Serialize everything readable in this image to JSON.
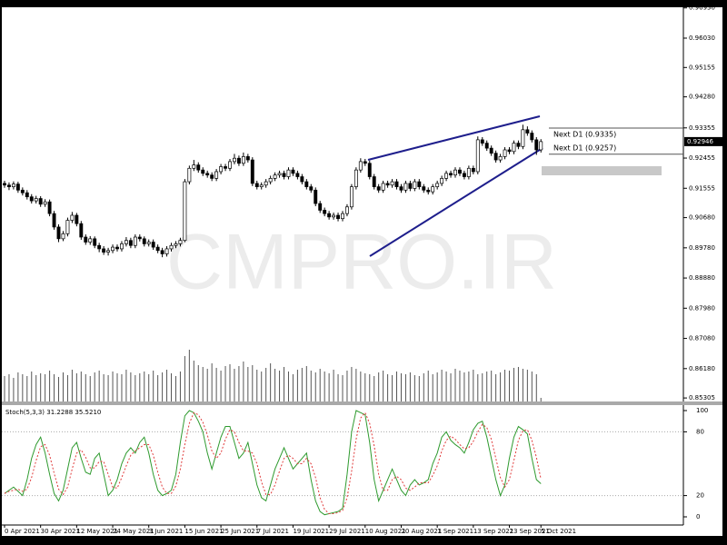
{
  "chart_data": {
    "type": "candlestick",
    "watermark": "CMPRO.IR",
    "categories": [
      "0 Apr 2021",
      null,
      null,
      null,
      null,
      null,
      null,
      null,
      "30 Apr 2021",
      null,
      null,
      null,
      null,
      null,
      null,
      null,
      "12 May 2021",
      null,
      null,
      null,
      null,
      null,
      null,
      null,
      "24 May 2021",
      null,
      null,
      null,
      null,
      null,
      null,
      null,
      "3 Jun 2021",
      null,
      null,
      null,
      null,
      null,
      null,
      null,
      "15 Jun 2021",
      null,
      null,
      null,
      null,
      null,
      null,
      null,
      "25 Jun 2021",
      null,
      null,
      null,
      null,
      null,
      null,
      null,
      "7 Jul 2021",
      null,
      null,
      null,
      null,
      null,
      null,
      null,
      "19 Jul 2021",
      null,
      null,
      null,
      null,
      null,
      null,
      null,
      "29 Jul 2021",
      null,
      null,
      null,
      null,
      null,
      null,
      null,
      "10 Aug 2021",
      null,
      null,
      null,
      null,
      null,
      null,
      null,
      "20 Aug 2021",
      null,
      null,
      null,
      null,
      null,
      null,
      null,
      "1 Sep 2021",
      null,
      null,
      null,
      null,
      null,
      null,
      null,
      "13 Sep 2021",
      null,
      null,
      null,
      null,
      null,
      null,
      null,
      "23 Sep 2021",
      null,
      null,
      null,
      null,
      null,
      null,
      "5 Oct 2021"
    ],
    "candles": [
      [
        0.917,
        0.9178,
        0.9157,
        0.9165
      ],
      [
        0.9165,
        0.9173,
        0.915,
        0.916
      ],
      [
        0.916,
        0.9176,
        0.9152,
        0.9168
      ],
      [
        0.9168,
        0.9175,
        0.9142,
        0.915
      ],
      [
        0.915,
        0.9158,
        0.9134,
        0.9142
      ],
      [
        0.9142,
        0.915,
        0.9122,
        0.913
      ],
      [
        0.913,
        0.9138,
        0.911,
        0.9118
      ],
      [
        0.9118,
        0.9133,
        0.911,
        0.9125
      ],
      [
        0.9125,
        0.9132,
        0.91,
        0.9108
      ],
      [
        0.9108,
        0.9123,
        0.91,
        0.9115
      ],
      [
        0.9115,
        0.9122,
        0.9072,
        0.908
      ],
      [
        0.908,
        0.9088,
        0.9032,
        0.904
      ],
      [
        0.904,
        0.9048,
        0.8995,
        0.9005
      ],
      [
        0.9005,
        0.9028,
        0.8998,
        0.902
      ],
      [
        0.902,
        0.9068,
        0.9012,
        0.906
      ],
      [
        0.906,
        0.9085,
        0.9052,
        0.9075
      ],
      [
        0.9075,
        0.9082,
        0.9042,
        0.905
      ],
      [
        0.905,
        0.9058,
        0.9002,
        0.901
      ],
      [
        0.901,
        0.9018,
        0.8987,
        0.8995
      ],
      [
        0.8995,
        0.9013,
        0.8987,
        0.9005
      ],
      [
        0.9005,
        0.9012,
        0.8977,
        0.8985
      ],
      [
        0.8985,
        0.8993,
        0.8965,
        0.8975
      ],
      [
        0.8975,
        0.8983,
        0.8957,
        0.8965
      ],
      [
        0.8965,
        0.8978,
        0.8955,
        0.897
      ],
      [
        0.897,
        0.8988,
        0.8962,
        0.898
      ],
      [
        0.898,
        0.8988,
        0.8967,
        0.8975
      ],
      [
        0.8975,
        0.8998,
        0.8967,
        0.899
      ],
      [
        0.899,
        0.901,
        0.8982,
        0.9
      ],
      [
        0.9,
        0.9008,
        0.8977,
        0.8985
      ],
      [
        0.8985,
        0.9018,
        0.8977,
        0.901
      ],
      [
        0.901,
        0.9018,
        0.8997,
        0.9005
      ],
      [
        0.9005,
        0.9012,
        0.8982,
        0.899
      ],
      [
        0.899,
        0.9003,
        0.8982,
        0.8995
      ],
      [
        0.8995,
        0.9003,
        0.8972,
        0.898
      ],
      [
        0.898,
        0.8988,
        0.8962,
        0.897
      ],
      [
        0.897,
        0.8978,
        0.895,
        0.896
      ],
      [
        0.896,
        0.8983,
        0.8952,
        0.8975
      ],
      [
        0.8975,
        0.8993,
        0.8967,
        0.8985
      ],
      [
        0.8985,
        0.8998,
        0.8977,
        0.899
      ],
      [
        0.899,
        0.9008,
        0.8982,
        0.9
      ],
      [
        0.9,
        0.9183,
        0.8995,
        0.9175
      ],
      [
        0.9175,
        0.9223,
        0.9167,
        0.9215
      ],
      [
        0.9215,
        0.924,
        0.9207,
        0.9225
      ],
      [
        0.9225,
        0.9233,
        0.9202,
        0.921
      ],
      [
        0.921,
        0.9218,
        0.9192,
        0.92
      ],
      [
        0.92,
        0.9208,
        0.9187,
        0.9195
      ],
      [
        0.9195,
        0.9203,
        0.9177,
        0.9185
      ],
      [
        0.9185,
        0.9213,
        0.9177,
        0.9205
      ],
      [
        0.9205,
        0.9228,
        0.9197,
        0.922
      ],
      [
        0.922,
        0.9228,
        0.9207,
        0.9215
      ],
      [
        0.9215,
        0.9243,
        0.9207,
        0.9235
      ],
      [
        0.9235,
        0.9258,
        0.9227,
        0.9245
      ],
      [
        0.9245,
        0.9253,
        0.9222,
        0.923
      ],
      [
        0.923,
        0.9262,
        0.9222,
        0.925
      ],
      [
        0.925,
        0.9258,
        0.9232,
        0.924
      ],
      [
        0.924,
        0.9248,
        0.9162,
        0.917
      ],
      [
        0.917,
        0.9178,
        0.9152,
        0.916
      ],
      [
        0.916,
        0.9173,
        0.9152,
        0.9165
      ],
      [
        0.9165,
        0.9183,
        0.9157,
        0.9175
      ],
      [
        0.9175,
        0.9193,
        0.9167,
        0.9185
      ],
      [
        0.9185,
        0.9203,
        0.9177,
        0.9195
      ],
      [
        0.9195,
        0.9208,
        0.9187,
        0.92
      ],
      [
        0.92,
        0.9208,
        0.9182,
        0.919
      ],
      [
        0.919,
        0.9218,
        0.9182,
        0.921
      ],
      [
        0.921,
        0.9218,
        0.9192,
        0.92
      ],
      [
        0.92,
        0.9208,
        0.9182,
        0.919
      ],
      [
        0.919,
        0.9198,
        0.9167,
        0.9175
      ],
      [
        0.9175,
        0.9183,
        0.9152,
        0.916
      ],
      [
        0.916,
        0.9168,
        0.9142,
        0.915
      ],
      [
        0.915,
        0.9158,
        0.9102,
        0.911
      ],
      [
        0.911,
        0.9118,
        0.9082,
        0.909
      ],
      [
        0.909,
        0.9098,
        0.9072,
        0.908
      ],
      [
        0.908,
        0.9088,
        0.9062,
        0.907
      ],
      [
        0.907,
        0.9083,
        0.9062,
        0.9075
      ],
      [
        0.9075,
        0.9083,
        0.9057,
        0.9065
      ],
      [
        0.9065,
        0.9088,
        0.9057,
        0.908
      ],
      [
        0.908,
        0.9108,
        0.9072,
        0.91
      ],
      [
        0.91,
        0.9168,
        0.9092,
        0.916
      ],
      [
        0.916,
        0.9218,
        0.9152,
        0.921
      ],
      [
        0.921,
        0.9245,
        0.9202,
        0.9235
      ],
      [
        0.9235,
        0.9243,
        0.9222,
        0.923
      ],
      [
        0.923,
        0.9238,
        0.9182,
        0.919
      ],
      [
        0.919,
        0.9198,
        0.9152,
        0.916
      ],
      [
        0.916,
        0.9168,
        0.9142,
        0.915
      ],
      [
        0.915,
        0.9178,
        0.9142,
        0.917
      ],
      [
        0.917,
        0.9178,
        0.9157,
        0.9165
      ],
      [
        0.9165,
        0.9183,
        0.9157,
        0.9175
      ],
      [
        0.9175,
        0.9183,
        0.9152,
        0.916
      ],
      [
        0.916,
        0.9168,
        0.9142,
        0.915
      ],
      [
        0.915,
        0.9178,
        0.9142,
        0.917
      ],
      [
        0.917,
        0.9178,
        0.9147,
        0.9155
      ],
      [
        0.9155,
        0.9183,
        0.9147,
        0.9175
      ],
      [
        0.9175,
        0.9183,
        0.9152,
        0.916
      ],
      [
        0.916,
        0.9168,
        0.9142,
        0.915
      ],
      [
        0.915,
        0.9158,
        0.9137,
        0.9145
      ],
      [
        0.9145,
        0.9168,
        0.9137,
        0.916
      ],
      [
        0.916,
        0.9178,
        0.9152,
        0.917
      ],
      [
        0.917,
        0.9193,
        0.9162,
        0.9185
      ],
      [
        0.9185,
        0.9208,
        0.9177,
        0.92
      ],
      [
        0.92,
        0.9208,
        0.9187,
        0.9195
      ],
      [
        0.9195,
        0.9218,
        0.9187,
        0.921
      ],
      [
        0.921,
        0.9218,
        0.9192,
        0.92
      ],
      [
        0.92,
        0.9208,
        0.9182,
        0.919
      ],
      [
        0.919,
        0.9223,
        0.9182,
        0.9215
      ],
      [
        0.9215,
        0.9223,
        0.9197,
        0.9205
      ],
      [
        0.9205,
        0.931,
        0.9197,
        0.93
      ],
      [
        0.93,
        0.9308,
        0.9282,
        0.929
      ],
      [
        0.929,
        0.9298,
        0.9267,
        0.9275
      ],
      [
        0.9275,
        0.9283,
        0.9252,
        0.926
      ],
      [
        0.926,
        0.9268,
        0.9232,
        0.924
      ],
      [
        0.924,
        0.9258,
        0.9232,
        0.925
      ],
      [
        0.925,
        0.9278,
        0.9242,
        0.927
      ],
      [
        0.927,
        0.9278,
        0.9257,
        0.9265
      ],
      [
        0.9265,
        0.9298,
        0.9257,
        0.929
      ],
      [
        0.929,
        0.9298,
        0.9272,
        0.928
      ],
      [
        0.928,
        0.9345,
        0.9272,
        0.933
      ],
      [
        0.933,
        0.934,
        0.9312,
        0.932
      ],
      [
        0.932,
        0.9328,
        0.9292,
        0.93
      ],
      [
        0.93,
        0.9308,
        0.9255,
        0.927
      ],
      [
        0.927,
        0.9302,
        0.9262,
        0.92946
      ]
    ],
    "ylim": [
      0.852,
      0.9695
    ],
    "yticks": [
      {
        "value": 0.9693,
        "label": "0.96930"
      },
      {
        "value": 0.9603,
        "label": "0.96030"
      },
      {
        "value": 0.95155,
        "label": "0.95155"
      },
      {
        "value": 0.9428,
        "label": "0.94280"
      },
      {
        "value": 0.93355,
        "label": "0.93355"
      },
      {
        "value": 0.92455,
        "label": "0.92455"
      },
      {
        "value": 0.91555,
        "label": "0.91555"
      },
      {
        "value": 0.9068,
        "label": "0.90680"
      },
      {
        "value": 0.8978,
        "label": "0.89780"
      },
      {
        "value": 0.8888,
        "label": "0.88880"
      },
      {
        "value": 0.8798,
        "label": "0.87980"
      },
      {
        "value": 0.8708,
        "label": "0.87080"
      },
      {
        "value": 0.8618,
        "label": "0.86180"
      },
      {
        "value": 0.85305,
        "label": "0.85305"
      }
    ],
    "volume": [
      28,
      30,
      26,
      32,
      30,
      28,
      33,
      29,
      31,
      30,
      34,
      30,
      27,
      32,
      29,
      35,
      31,
      33,
      30,
      28,
      32,
      34,
      30,
      29,
      33,
      31,
      30,
      35,
      32,
      29,
      31,
      33,
      30,
      34,
      29,
      32,
      35,
      31,
      28,
      33,
      50,
      57,
      45,
      40,
      38,
      36,
      42,
      37,
      34,
      39,
      41,
      36,
      39,
      44,
      38,
      40,
      35,
      33,
      37,
      42,
      36,
      34,
      38,
      33,
      30,
      35,
      37,
      39,
      34,
      32,
      36,
      33,
      31,
      35,
      30,
      29,
      34,
      38,
      36,
      33,
      31,
      30,
      28,
      32,
      34,
      30,
      29,
      33,
      31,
      30,
      32,
      29,
      28,
      31,
      34,
      30,
      32,
      35,
      33,
      31,
      36,
      34,
      32,
      33,
      35,
      30,
      31,
      33,
      34,
      30,
      32,
      35,
      34,
      37,
      38,
      36,
      35,
      33,
      30,
      4
    ],
    "levels": [
      {
        "label": "Next D1 (0.9335)",
        "value": 0.9335
      },
      {
        "label": "Next D1 (0.9257)",
        "value": 0.9257
      }
    ],
    "indicator": {
      "label": "Stoch(5,3,3) 31.2288 35.5210",
      "ylim": [
        0,
        100
      ],
      "yticks": [
        0,
        20,
        80,
        100
      ],
      "series": [
        {
          "color": "#2e9a2e",
          "values": [
            22,
            25,
            28,
            24,
            20,
            35,
            55,
            68,
            75,
            60,
            40,
            22,
            15,
            25,
            45,
            65,
            70,
            55,
            42,
            40,
            55,
            60,
            40,
            20,
            25,
            35,
            50,
            60,
            65,
            60,
            70,
            75,
            60,
            40,
            25,
            20,
            22,
            25,
            40,
            70,
            95,
            100,
            98,
            90,
            80,
            60,
            45,
            60,
            75,
            85,
            85,
            70,
            55,
            60,
            70,
            50,
            30,
            18,
            15,
            30,
            45,
            55,
            65,
            55,
            45,
            50,
            55,
            60,
            35,
            15,
            5,
            2,
            3,
            4,
            5,
            8,
            40,
            80,
            100,
            98,
            96,
            70,
            35,
            15,
            25,
            35,
            45,
            35,
            25,
            20,
            30,
            35,
            30,
            32,
            35,
            50,
            60,
            75,
            80,
            72,
            68,
            65,
            60,
            70,
            82,
            88,
            90,
            75,
            55,
            35,
            20,
            30,
            55,
            75,
            85,
            82,
            78,
            55,
            35,
            31.2288
          ]
        },
        {
          "color": "#e03a3a",
          "dash": true,
          "values": [
            22,
            24,
            25,
            26,
            24,
            26,
            37,
            53,
            66,
            68,
            58,
            41,
            26,
            21,
            28,
            45,
            60,
            63,
            56,
            46,
            46,
            52,
            52,
            40,
            28,
            27,
            37,
            48,
            58,
            62,
            65,
            68,
            68,
            58,
            42,
            28,
            22,
            22,
            29,
            45,
            68,
            88,
            98,
            96,
            89,
            77,
            62,
            55,
            60,
            73,
            82,
            80,
            70,
            62,
            62,
            60,
            50,
            33,
            21,
            21,
            30,
            43,
            55,
            58,
            55,
            50,
            50,
            55,
            50,
            37,
            18,
            7,
            3,
            3,
            4,
            6,
            18,
            43,
            73,
            93,
            98,
            88,
            67,
            40,
            25,
            25,
            35,
            38,
            35,
            27,
            25,
            28,
            32,
            32,
            32,
            39,
            48,
            62,
            72,
            76,
            73,
            68,
            64,
            65,
            71,
            80,
            87,
            84,
            73,
            55,
            37,
            28,
            35,
            53,
            72,
            81,
            82,
            72,
            56,
            35.521
          ]
        }
      ]
    }
  }
}
